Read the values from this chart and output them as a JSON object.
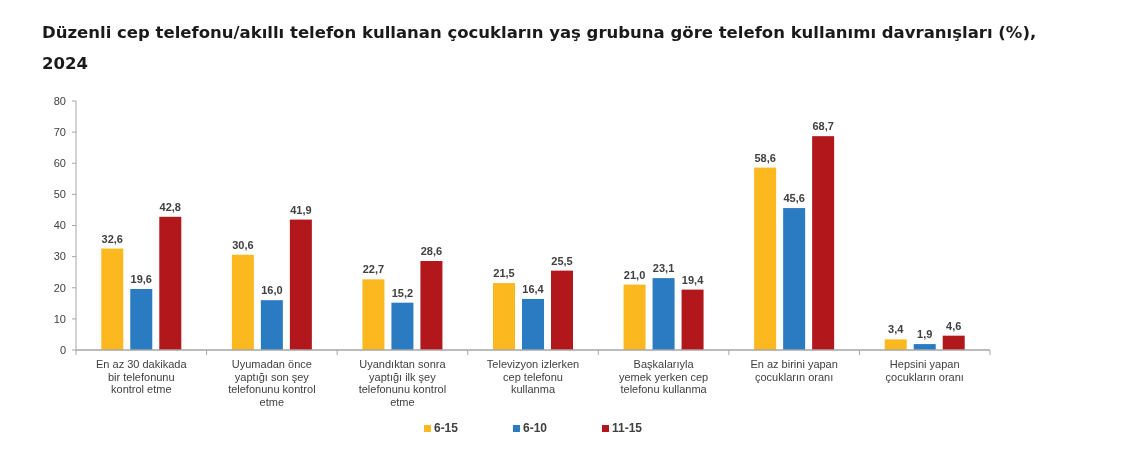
{
  "chart_data": {
    "type": "bar",
    "title": "Düzenli cep telefonu/akıllı telefon kullanan çocukların yaş grubuna göre telefon kullanımı davranışları (%), 2024",
    "categories": [
      "En az 30 dakikada bir telefonunu kontrol etme",
      "Uyumadan önce yaptığı son şey telefonunu kontrol etme",
      "Uyandıktan sonra yaptığı ilk şey telefonunu kontrol etme",
      "Televizyon izlerken cep telefonu kullanma",
      "Başkalarıyla yemek yerken cep telefonu kullanma",
      "En az birini yapan çocukların oranı",
      "Hepsini yapan çocukların oranı"
    ],
    "series": [
      {
        "name": "6-15",
        "color": "#fbb91f",
        "values": [
          32.6,
          30.6,
          22.7,
          21.5,
          21.0,
          58.6,
          3.4
        ],
        "value_labels": [
          "32,6",
          "30,6",
          "22,7",
          "21,5",
          "21,0",
          "58,6",
          "3,4"
        ]
      },
      {
        "name": "6-10",
        "color": "#2a7bc2",
        "values": [
          19.6,
          16.0,
          15.2,
          16.4,
          23.1,
          45.6,
          1.9
        ],
        "value_labels": [
          "19,6",
          "16,0",
          "15,2",
          "16,4",
          "23,1",
          "45,6",
          "1,9"
        ]
      },
      {
        "name": "11-15",
        "color": "#b2171c",
        "values": [
          42.8,
          41.9,
          28.6,
          25.5,
          19.4,
          68.7,
          4.6
        ],
        "value_labels": [
          "42,8",
          "41,9",
          "28,6",
          "25,5",
          "19,4",
          "68,7",
          "4,6"
        ]
      }
    ],
    "ylim": [
      0,
      80
    ],
    "yticks": [
      0,
      10,
      20,
      30,
      40,
      50,
      60,
      70,
      80
    ],
    "legend": "bottom"
  }
}
